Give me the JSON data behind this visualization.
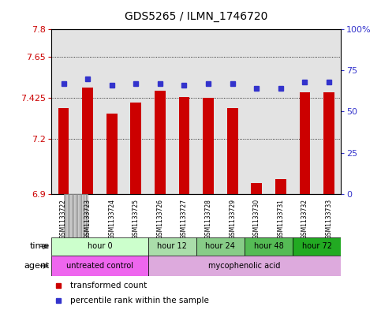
{
  "title": "GDS5265 / ILMN_1746720",
  "samples": [
    "GSM1133722",
    "GSM1133723",
    "GSM1133724",
    "GSM1133725",
    "GSM1133726",
    "GSM1133727",
    "GSM1133728",
    "GSM1133729",
    "GSM1133730",
    "GSM1133731",
    "GSM1133732",
    "GSM1133733"
  ],
  "bar_values": [
    7.37,
    7.48,
    7.34,
    7.4,
    7.465,
    7.43,
    7.425,
    7.37,
    6.96,
    6.98,
    7.455,
    7.455
  ],
  "percentile_values": [
    67,
    70,
    66,
    67,
    67,
    66,
    67,
    67,
    64,
    64,
    68,
    68
  ],
  "y_min": 6.9,
  "y_max": 7.8,
  "y_ticks": [
    6.9,
    7.2,
    7.425,
    7.65,
    7.8
  ],
  "y_tick_labels": [
    "6.9",
    "7.2",
    "7.425",
    "7.65",
    "7.8"
  ],
  "right_y_ticks": [
    0,
    25,
    50,
    75,
    100
  ],
  "right_y_tick_labels": [
    "0",
    "25",
    "50",
    "75",
    "100%"
  ],
  "bar_color": "#cc0000",
  "dot_color": "#3333cc",
  "time_groups": [
    {
      "label": "hour 0",
      "start": 0,
      "end": 4,
      "color": "#ccffcc"
    },
    {
      "label": "hour 12",
      "start": 4,
      "end": 6,
      "color": "#aaddaa"
    },
    {
      "label": "hour 24",
      "start": 6,
      "end": 8,
      "color": "#88cc88"
    },
    {
      "label": "hour 48",
      "start": 8,
      "end": 10,
      "color": "#55bb55"
    },
    {
      "label": "hour 72",
      "start": 10,
      "end": 12,
      "color": "#22aa22"
    }
  ],
  "agent_groups": [
    {
      "label": "untreated control",
      "start": 0,
      "end": 4,
      "color": "#ee66ee"
    },
    {
      "label": "mycophenolic acid",
      "start": 4,
      "end": 12,
      "color": "#ddaadd"
    }
  ],
  "legend_items": [
    {
      "label": "transformed count",
      "color": "#cc0000"
    },
    {
      "label": "percentile rank within the sample",
      "color": "#3333cc"
    }
  ],
  "axis_color_left": "#cc0000",
  "axis_color_right": "#3333cc",
  "grid_dotted": [
    7.2,
    7.425,
    7.65
  ],
  "sample_bg_color": "#cccccc",
  "sample_line_color": "#999999"
}
